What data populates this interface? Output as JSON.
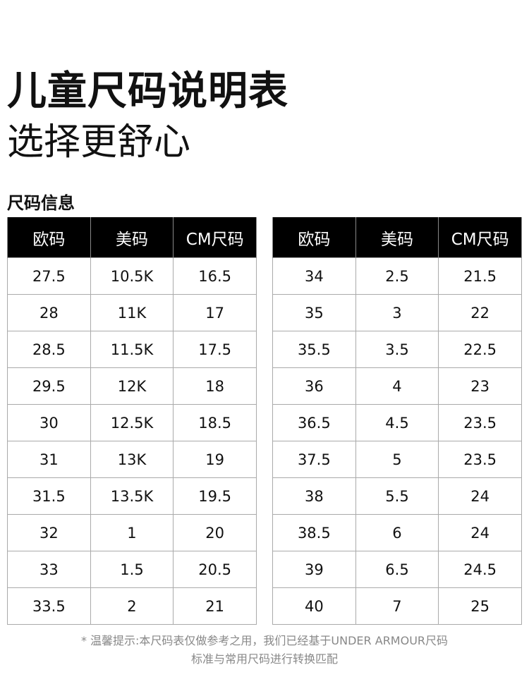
{
  "title": "儿童尺码说明表",
  "subtitle": "选择更舒心",
  "section": "尺码信息",
  "headers": [
    "欧码",
    "美码",
    "CM尺码"
  ],
  "left_rows": [
    [
      "27.5",
      "10.5K",
      "16.5"
    ],
    [
      "28",
      "11K",
      "17"
    ],
    [
      "28.5",
      "11.5K",
      "17.5"
    ],
    [
      "29.5",
      "12K",
      "18"
    ],
    [
      "30",
      "12.5K",
      "18.5"
    ],
    [
      "31",
      "13K",
      "19"
    ],
    [
      "31.5",
      "13.5K",
      "19.5"
    ],
    [
      "32",
      "1",
      "20"
    ],
    [
      "33",
      "1.5",
      "20.5"
    ],
    [
      "33.5",
      "2",
      "21"
    ]
  ],
  "right_rows": [
    [
      "34",
      "2.5",
      "21.5"
    ],
    [
      "35",
      "3",
      "22"
    ],
    [
      "35.5",
      "3.5",
      "22.5"
    ],
    [
      "36",
      "4",
      "23"
    ],
    [
      "36.5",
      "4.5",
      "23.5"
    ],
    [
      "37.5",
      "5",
      "23.5"
    ],
    [
      "38",
      "5.5",
      "24"
    ],
    [
      "38.5",
      "6",
      "24"
    ],
    [
      "39",
      "6.5",
      "24.5"
    ],
    [
      "40",
      "7",
      "25"
    ]
  ],
  "footer": {
    "line1": "* 温馨提示:本尺码表仅做参考之用，我们已经基于UNDER ARMOUR尺码",
    "line2": "标准与常用尺码进行转换匹配"
  }
}
